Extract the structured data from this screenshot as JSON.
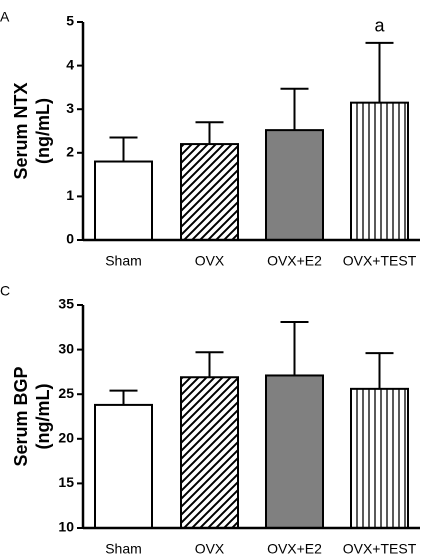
{
  "chart_data": [
    {
      "type": "bar",
      "panel": "A",
      "ylabel": [
        "Serum NTX",
        "(ng/mL)"
      ],
      "categories": [
        "Sham",
        "OVX",
        "OVX+E2",
        "OVX+TEST"
      ],
      "values": [
        1.8,
        2.2,
        2.52,
        3.15
      ],
      "errors": [
        0.55,
        0.5,
        0.95,
        1.37
      ],
      "fills": [
        "#ffffff",
        "diagonal-hatch",
        "#808080",
        "vertical-hatch"
      ],
      "annotation": "a",
      "ylim": [
        0,
        5
      ],
      "yticks": [
        0,
        1,
        2,
        3,
        4,
        5
      ]
    },
    {
      "type": "bar",
      "panel": "C",
      "ylabel": [
        "Serum BGP",
        "(ng/mL)"
      ],
      "categories": [
        "Sham",
        "OVX",
        "OVX+E2",
        "OVX+TEST"
      ],
      "values": [
        23.8,
        26.9,
        27.1,
        25.6
      ],
      "errors": [
        1.6,
        2.8,
        6.0,
        4.0
      ],
      "fills": [
        "#ffffff",
        "diagonal-hatch",
        "#808080",
        "vertical-hatch"
      ],
      "ylim": [
        10,
        35
      ],
      "yticks": [
        10,
        15,
        20,
        25,
        30,
        35
      ]
    }
  ]
}
